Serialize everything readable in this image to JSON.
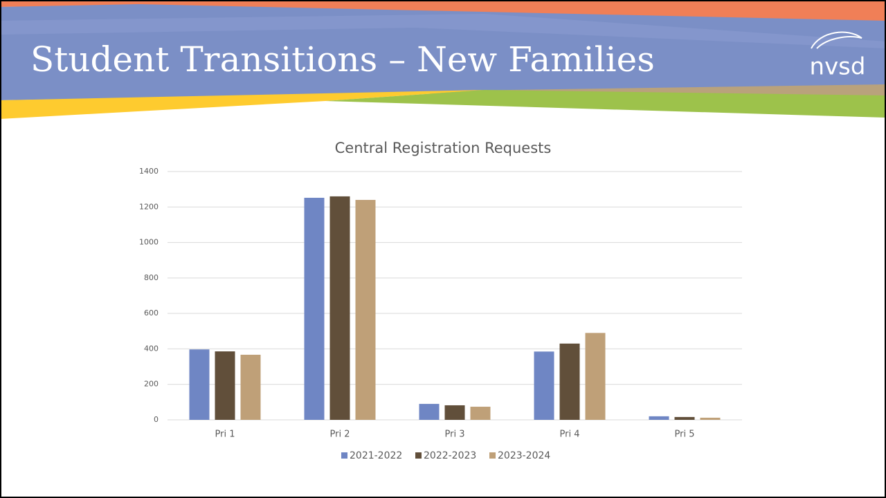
{
  "header": {
    "title": "Student Transitions – New Families",
    "logo": "nvsd"
  },
  "chart_data": {
    "type": "bar",
    "title": "Central Registration Requests",
    "categories": [
      "Pri 1",
      "Pri 2",
      "Pri 3",
      "Pri 4",
      "Pri 5"
    ],
    "series": [
      {
        "name": "2021-2022",
        "color": "#6f86c4",
        "values": [
          397,
          1252,
          90,
          385,
          20
        ]
      },
      {
        "name": "2022-2023",
        "color": "#614f3a",
        "values": [
          386,
          1260,
          82,
          430,
          16
        ]
      },
      {
        "name": "2023-2024",
        "color": "#bfa078",
        "values": [
          367,
          1240,
          74,
          490,
          12
        ]
      }
    ],
    "ylim": [
      0,
      1400
    ],
    "yticks": [
      0,
      200,
      400,
      600,
      800,
      1000,
      1200,
      1400
    ],
    "grid": true,
    "legend": "bottom"
  }
}
